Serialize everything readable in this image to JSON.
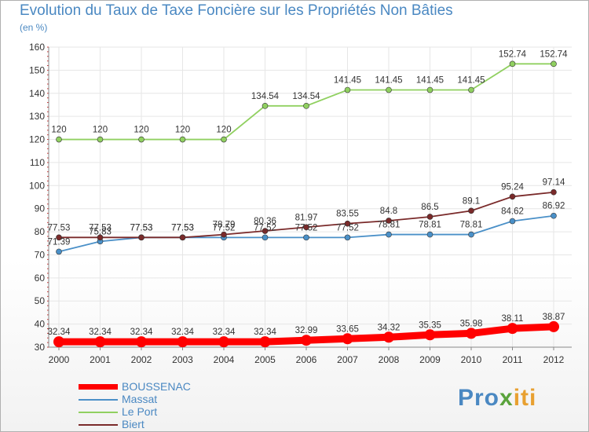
{
  "title": "Evolution du Taux de Taxe Foncière sur les Propriétés Non Bâties",
  "subtitle": "(en %)",
  "logo_text": "Proxiti",
  "chart_data": {
    "type": "line",
    "title": "Evolution du Taux de Taxe Foncière sur les Propriétés Non Bâties",
    "ylabel": "(en %)",
    "xlabel": "",
    "ylim": [
      30,
      160
    ],
    "yticks": [
      30,
      40,
      50,
      60,
      70,
      80,
      90,
      100,
      110,
      120,
      130,
      140,
      150,
      160
    ],
    "categories": [
      "2000",
      "2001",
      "2002",
      "2003",
      "2004",
      "2005",
      "2006",
      "2007",
      "2008",
      "2009",
      "2010",
      "2011",
      "2012"
    ],
    "series": [
      {
        "name": "BOUSSENAC",
        "color": "#ff0000",
        "thick": true,
        "values": [
          32.34,
          32.34,
          32.34,
          32.34,
          32.34,
          32.34,
          32.99,
          33.65,
          34.32,
          35.35,
          35.98,
          38.11,
          38.87
        ],
        "labels": [
          "32.34",
          "32.34",
          "32.34",
          "32.34",
          "32.34",
          "32.34",
          "32.99",
          "33.65",
          "34.32",
          "35.35",
          "35.98",
          "38.11",
          "38.87"
        ]
      },
      {
        "name": "Massat",
        "color": "#4a90c8",
        "thick": false,
        "values": [
          71.39,
          75.83,
          77.53,
          77.53,
          77.52,
          77.52,
          77.52,
          77.52,
          78.81,
          78.81,
          78.81,
          84.62,
          86.92
        ],
        "labels": [
          "71.39",
          "75.83",
          "77.53",
          "77.53",
          "77.52",
          "77.52",
          "77.52",
          "77.52",
          "78.81",
          "78.81",
          "78.81",
          "84.62",
          "86.92"
        ]
      },
      {
        "name": "Le Port",
        "color": "#90d060",
        "thick": false,
        "values": [
          120,
          120,
          120,
          120,
          120,
          134.54,
          134.54,
          141.45,
          141.45,
          141.45,
          141.45,
          152.74,
          152.74
        ],
        "labels": [
          "120",
          "120",
          "120",
          "120",
          "120",
          "134.54",
          "134.54",
          "141.45",
          "141.45",
          "141.45",
          "141.45",
          "152.74",
          "152.74"
        ]
      },
      {
        "name": "Biert",
        "color": "#7a2a2a",
        "thick": false,
        "values": [
          77.53,
          77.53,
          77.53,
          77.53,
          78.79,
          80.36,
          81.97,
          83.55,
          84.8,
          86.5,
          89.1,
          95.24,
          97.14
        ],
        "labels": [
          "77.53",
          "77.53",
          "77.53",
          "77.53",
          "78.79",
          "80.36",
          "81.97",
          "83.55",
          "84.8",
          "86.5",
          "89.1",
          "95.24",
          "97.14"
        ]
      }
    ],
    "legend_position": "bottom-left"
  }
}
